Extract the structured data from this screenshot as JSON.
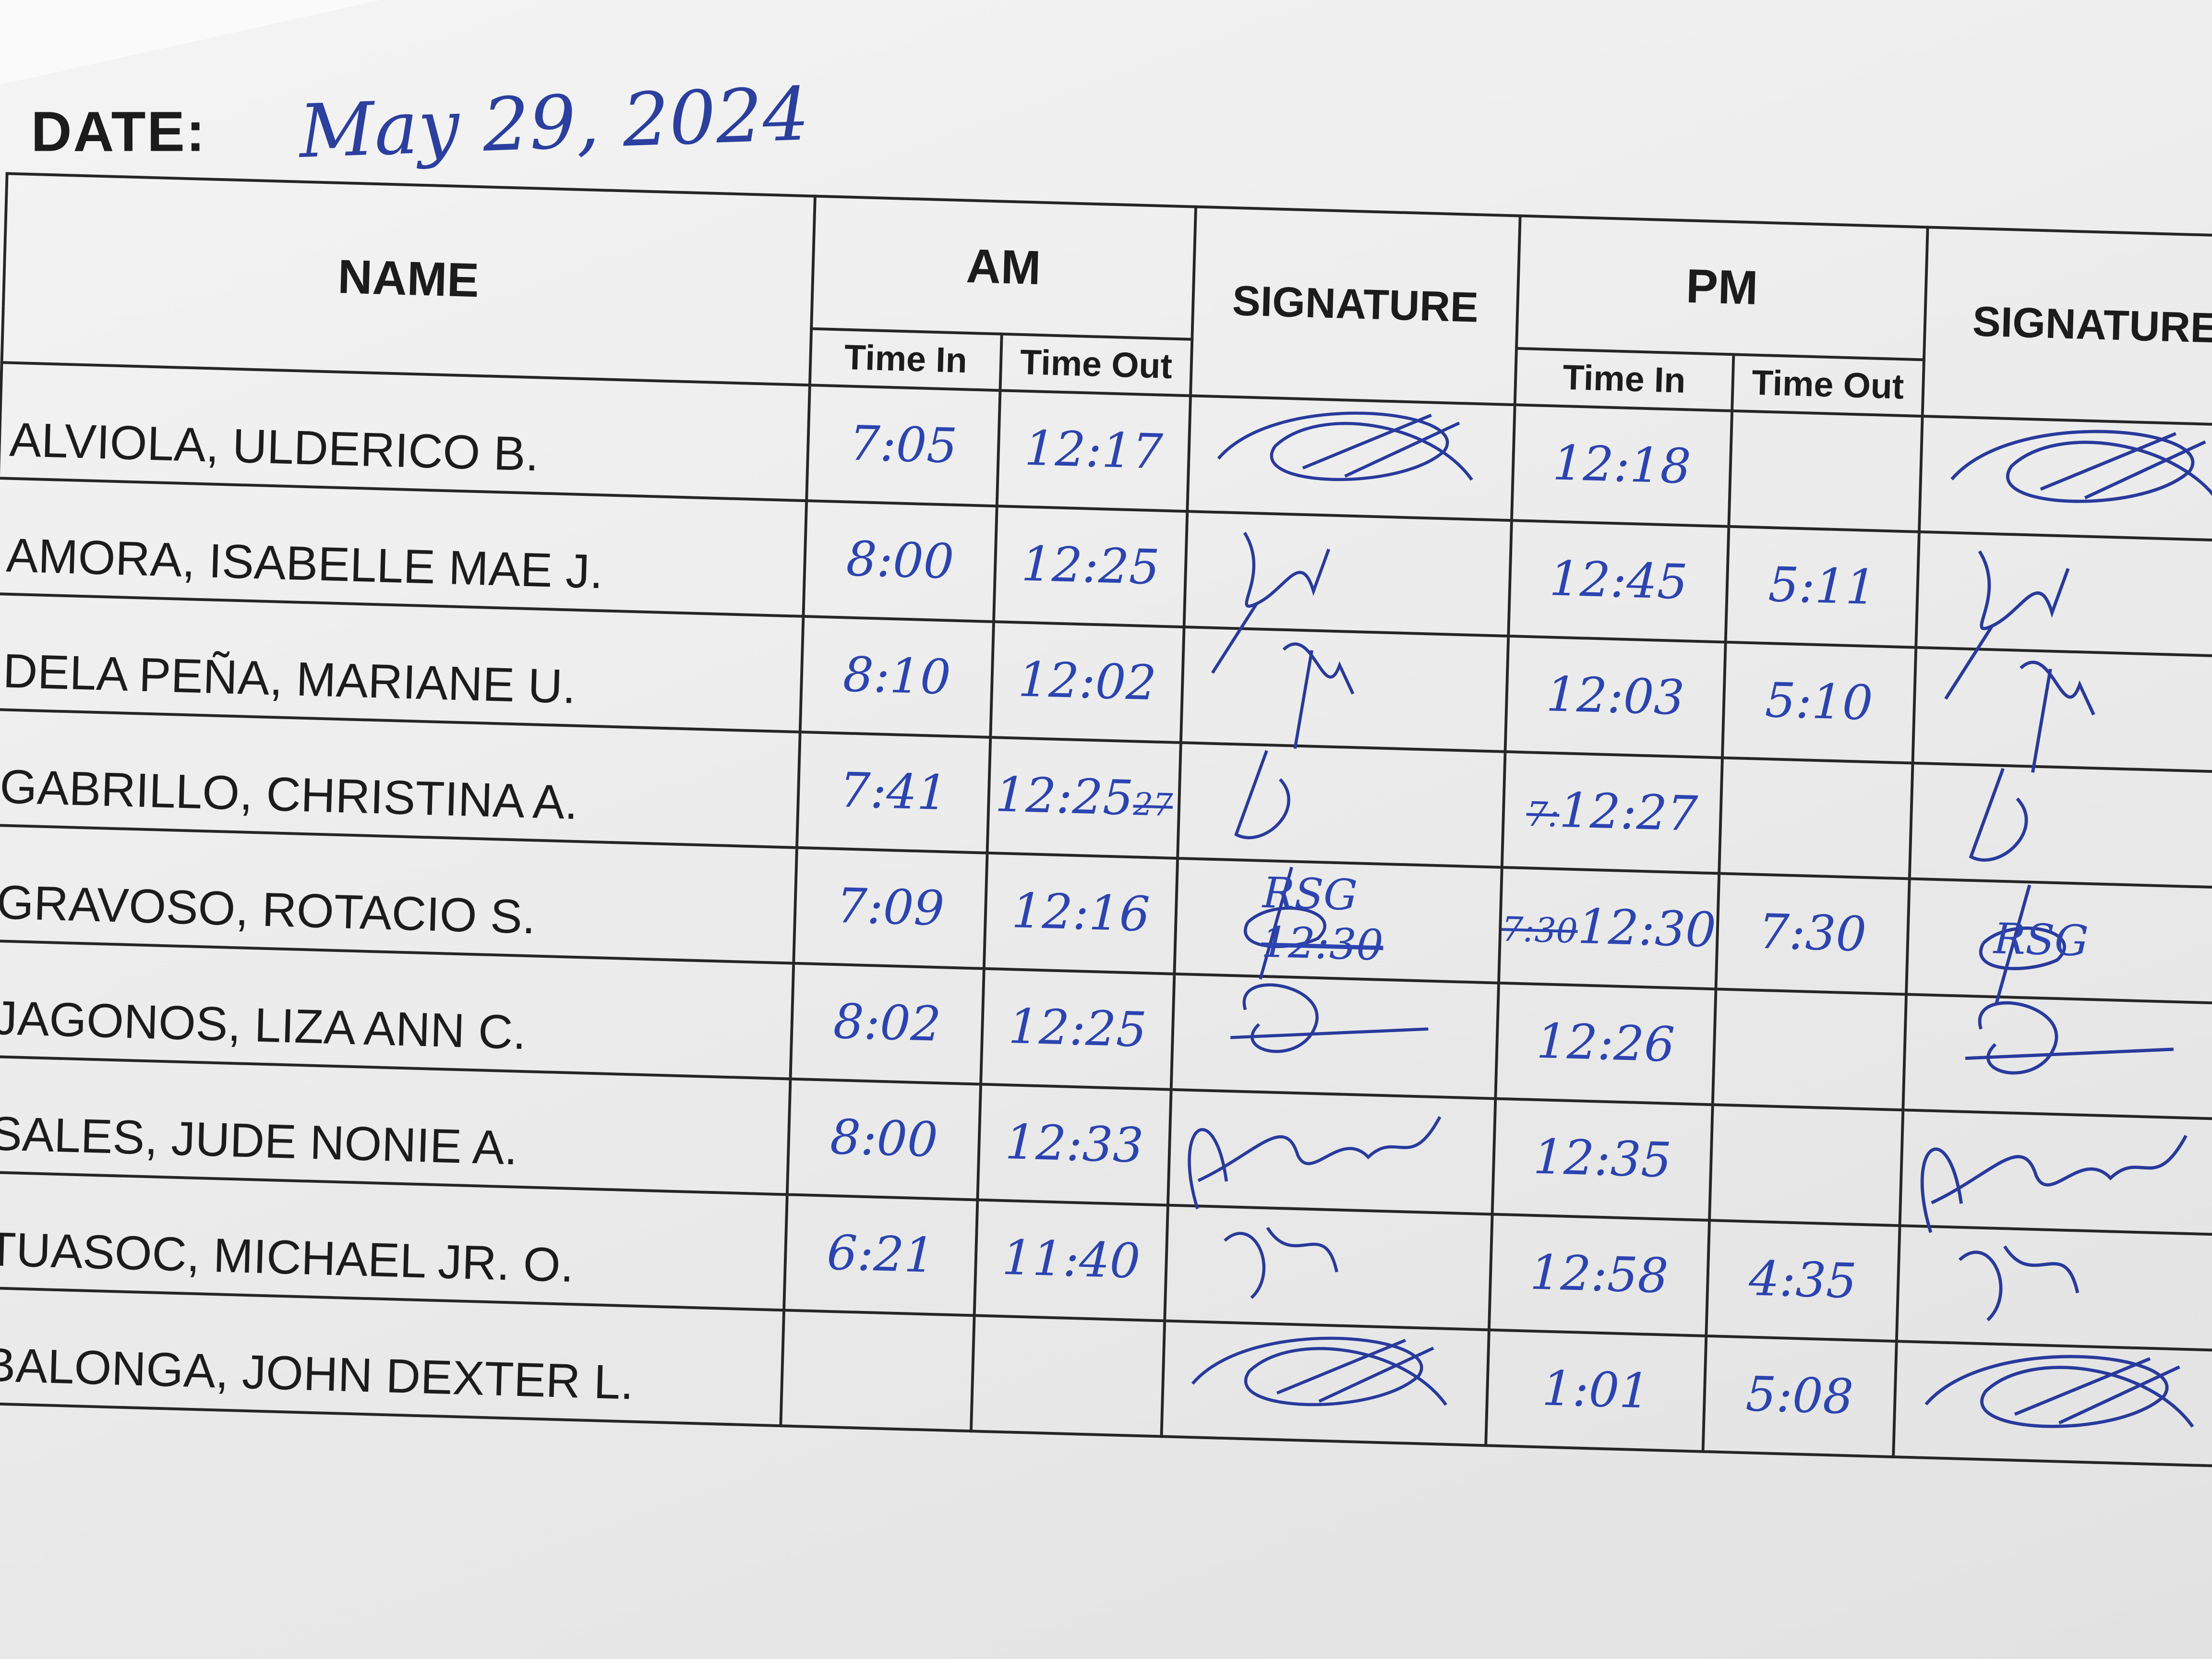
{
  "header": {
    "date_label": "DATE:",
    "date_value": "May 29, 2024"
  },
  "columns": {
    "name": "NAME",
    "am": "AM",
    "pm": "PM",
    "time_in": "Time In",
    "time_out": "Time Out",
    "signature": "SIGNATURE"
  },
  "rows": [
    {
      "name": "ALVIOLA, ULDERICO B.",
      "am_in": "7:05",
      "am_out": "12:17",
      "pm_in": "12:18",
      "pm_out": ""
    },
    {
      "name": "AMORA, ISABELLE MAE J.",
      "am_in": "8:00",
      "am_out": "12:25",
      "pm_in": "12:45",
      "pm_out": "5:11"
    },
    {
      "name": "DELA PEÑA, MARIANE U.",
      "am_in": "8:10",
      "am_out": "12:02",
      "pm_in": "12:03",
      "pm_out": "5:10"
    },
    {
      "name": "GABRILLO, CHRISTINA A.",
      "am_in": "7:41",
      "am_out": "12:25",
      "am_out_struck": "27",
      "pm_in": "12:27",
      "pm_in_struck": "7:",
      "pm_out": ""
    },
    {
      "name": "GRAVOSO, ROTACIO S.",
      "am_in": "7:09",
      "am_out": "12:16",
      "am_sig_note": "RSG",
      "am_sig_struck": "12:30",
      "pm_in": "12:30",
      "pm_in_struck": "7:30",
      "pm_out": "7:30",
      "pm_sig_note": "RSG"
    },
    {
      "name": "JAGONOS, LIZA ANN C.",
      "am_in": "8:02",
      "am_out": "12:25",
      "pm_in": "12:26",
      "pm_out": ""
    },
    {
      "name": "SALES, JUDE NONIE A.",
      "am_in": "8:00",
      "am_out": "12:33",
      "pm_in": "12:35",
      "pm_out": ""
    },
    {
      "name": "TUASOC, MICHAEL JR. O.",
      "am_in": "6:21",
      "am_out": "11:40",
      "pm_in": "12:58",
      "pm_out": "4:35"
    },
    {
      "name": "BALONGA, JOHN DEXTER L.",
      "am_in": "",
      "am_out": "",
      "pm_in": "1:01",
      "pm_out": "5:08"
    }
  ],
  "colors": {
    "ink": "#2b44b0",
    "print": "#1c1c1c",
    "paper": "#eeeeee"
  }
}
